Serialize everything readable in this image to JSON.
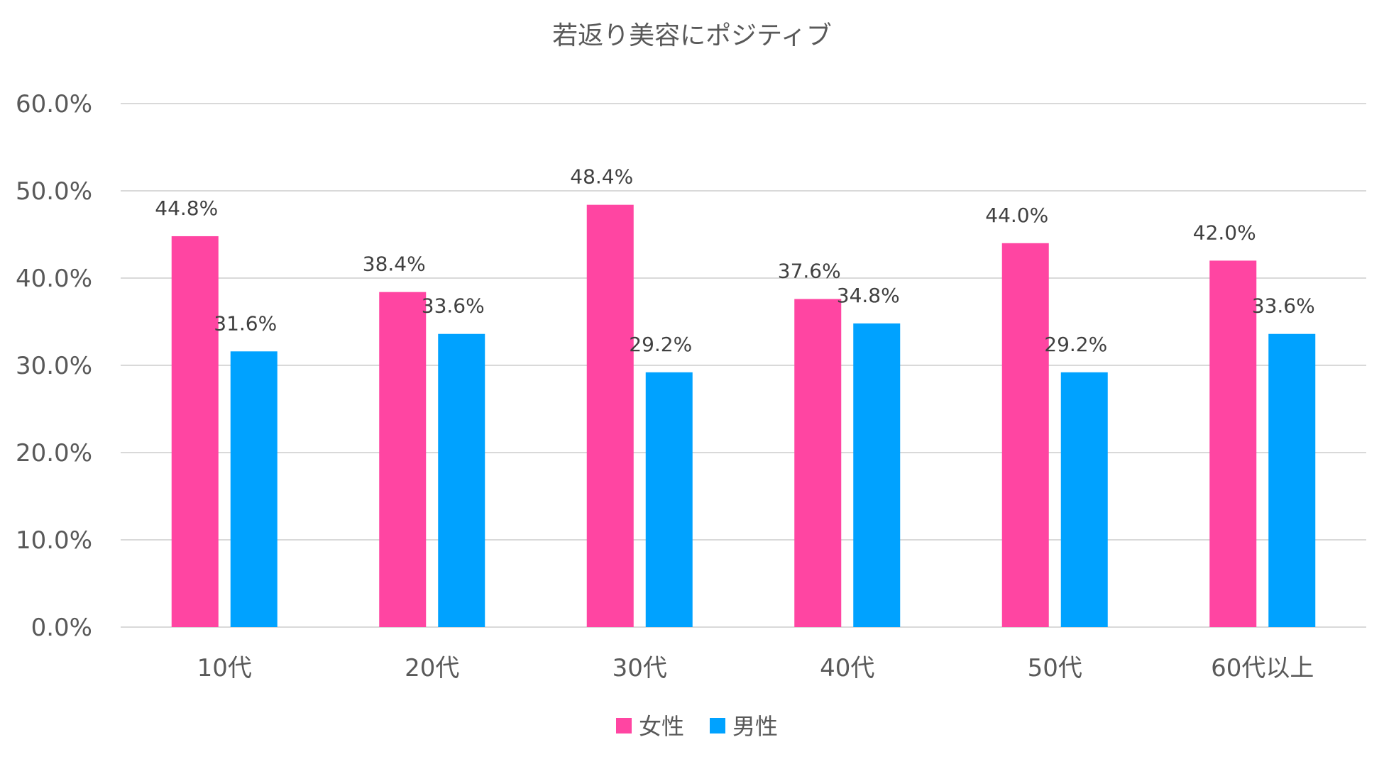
{
  "chart_data": {
    "type": "bar",
    "title": "若返り美容にポジティブ",
    "categories": [
      "10代",
      "20代",
      "30代",
      "40代",
      "50代",
      "60代以上"
    ],
    "series": [
      {
        "name": "女性",
        "color": "#ff45a2",
        "values": [
          44.8,
          38.4,
          48.4,
          37.6,
          44.0,
          42.0
        ],
        "labels": [
          "44.8%",
          "38.4%",
          "48.4%",
          "37.6%",
          "44.0%",
          "42.0%"
        ]
      },
      {
        "name": "男性",
        "color": "#00a2ff",
        "values": [
          31.6,
          33.6,
          29.2,
          34.8,
          29.2,
          33.6
        ],
        "labels": [
          "31.6%",
          "33.6%",
          "29.2%",
          "34.8%",
          "29.2%",
          "33.6%"
        ]
      }
    ],
    "ylim": [
      0,
      60
    ],
    "yticks": [
      0,
      10,
      20,
      30,
      40,
      50,
      60
    ],
    "ytick_labels": [
      "0.0%",
      "10.0%",
      "20.0%",
      "30.0%",
      "40.0%",
      "50.0%",
      "60.0%"
    ],
    "grid": true,
    "legend_position": "bottom",
    "xlabel": "",
    "ylabel": ""
  }
}
